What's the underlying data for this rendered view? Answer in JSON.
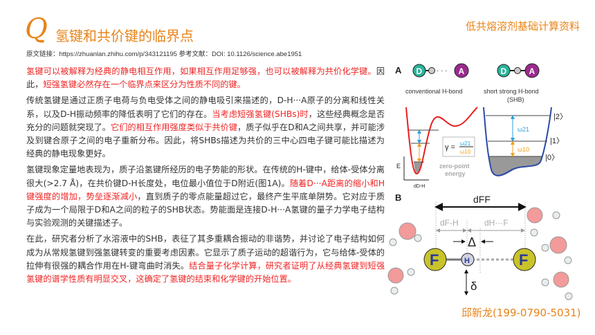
{
  "header": {
    "logo_letter": "Q",
    "title": "氢键和共价键的临界点",
    "brand": "低共熔溶剂基础计算资料",
    "ref": "原文链接：https://zhuanlan.zhihu.com/p/343121195   参考文献：DOI: 10.1126/science.abe1951"
  },
  "paragraphs": [
    [
      "氢键可以被解释为经典的静电相互作用，如果相互作用足够强，也可以被解释为共价化学键。",
      "因此，",
      "短强氢键必然存在一个临界点来区分为性质不同的键。"
    ],
    [
      "传统氢键是通过正质子电荷与负电受体之间的静电吸引来描述的，D-H···A原子的分离和线性关系，以及D-H振动频率的降低表明了它们的存在。",
      "当考虑短强氢键(SHBs)时",
      "，这些经典概念是否充分的问题就突现了。",
      "它们的相互作用强度类似于共价键",
      "，质子似乎在D和A之间共享，并可能涉及到键合原子之间的电子重新分布。因此，将SHBs描述为共价的三中心四电子键可能比描述为经典的静电现象更好。"
    ],
    [
      "氢键现象定量地表现为，质子沿氢键所经历的电子势能的形状。在传统的H-键中，给体-受体分离很大(>2.7 Å)，在共价键D-H长度处，电位最小值位于D附近(图1A)。",
      "随着D···A距离的缩小和H键强度的增加，势垒逐渐减小",
      "，直到质子的零点能量超过它，最终产生平底单阱势。它对应于质子成为一个局限于D和A之间的粒子的SHB状态。势能面是连接D-H···A氢键的量子力学电子结构与实验观测的关键描述子。"
    ],
    [
      "在此，研究者分析了水溶液中的SHB，表征了其多重耦合振动的非谐势，并讨论了电子结构如何成为从常规氢键到强氢键转变的重要考虑因素。它显示了质子运动的超谐行为，它与给体-受体的拉伸有很强的耦合作用在H-键弯曲时消失。",
      "结合量子化学计算，研究者证明了从经典氢键到短强氢键的谱学性质有明显交叉，这确定了氢键的结束和化学键的开始位置。"
    ]
  ],
  "figure": {
    "panel_a": "A",
    "panel_b": "B",
    "D": "D",
    "H": "H",
    "A": "A",
    "dots": "· · ·",
    "conventional": "conventional H-bond",
    "shb1": "short strong H-bond",
    "shb2": "(SHB)",
    "gamma": "γ =",
    "w21": "ω21",
    "w10": "ω10",
    "zpe1": "zero-point",
    "zpe2": "energy",
    "E": "E",
    "dDH": "dD-H",
    "k2": "|2〉",
    "k1": "|1〉",
    "k0": "|0〉",
    "dFF": "dFF",
    "dFH": "dF-H",
    "dHF": "dH···F",
    "Delta": "Δ",
    "delta": "δ",
    "F": "F"
  },
  "colors": {
    "accent": "#e8841a",
    "red": "#f02424",
    "D": "#2bb39a",
    "A": "#9b2a8f",
    "F": "#c9c32a"
  },
  "author": "邱新龙(199-0790-5031)"
}
